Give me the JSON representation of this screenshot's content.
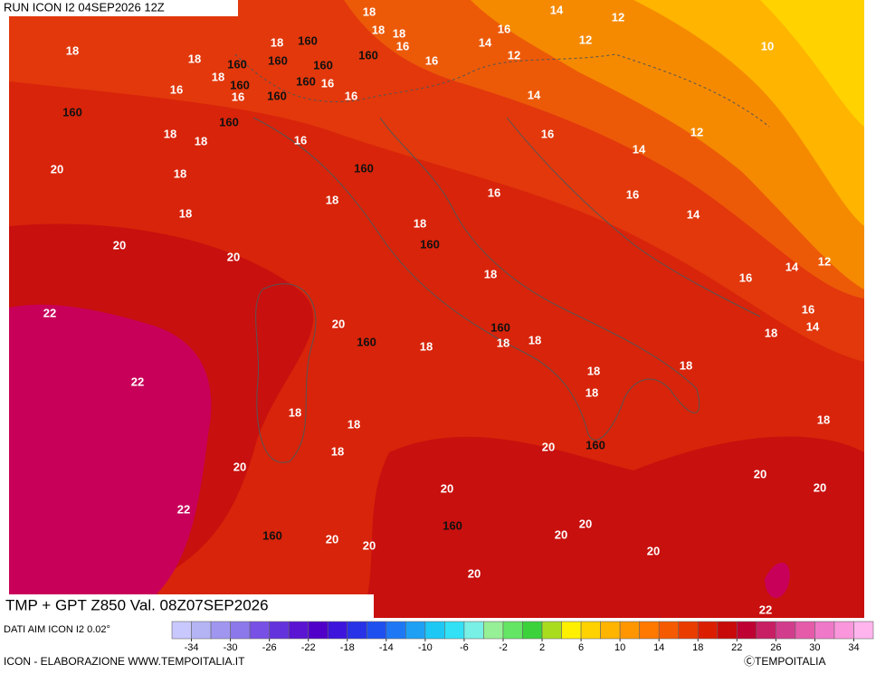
{
  "header": {
    "run": "RUN ICON I2 04SEP2026 12Z"
  },
  "map": {
    "title": "TMP + GPT Z850 Val. 08Z07SEP2026",
    "contour_labels": [
      "18",
      "14",
      "12",
      "16",
      "18",
      "18",
      "16",
      "160",
      "18",
      "14",
      "12",
      "10",
      "18",
      "18",
      "160",
      "160",
      "160",
      "160",
      "12",
      "16",
      "18",
      "160",
      "160",
      "16",
      "16",
      "16",
      "160",
      "16",
      "14",
      "160",
      "160",
      "12",
      "18",
      "18",
      "16",
      "16",
      "14",
      "20",
      "18",
      "160",
      "16",
      "16",
      "18",
      "18",
      "14",
      "18",
      "20",
      "160",
      "20",
      "14",
      "12",
      "18",
      "16",
      "22",
      "16",
      "20",
      "160",
      "18",
      "14",
      "160",
      "18",
      "18",
      "18",
      "18",
      "22",
      "18",
      "18",
      "18",
      "18",
      "18",
      "18",
      "20",
      "160",
      "20",
      "20",
      "20",
      "20",
      "22",
      "160",
      "20",
      "160",
      "20",
      "20",
      "20",
      "20",
      "20",
      "22"
    ]
  },
  "colorbar": {
    "source": "DATI AIM ICON I2 0.02°",
    "colors": [
      "#c8c8ff",
      "#b4b4f5",
      "#a096f0",
      "#8c78eb",
      "#7850e6",
      "#6432dc",
      "#5a14d2",
      "#5000c8",
      "#3c14dc",
      "#2832e6",
      "#1e50f0",
      "#1e78f5",
      "#1ea0f5",
      "#1ec8f5",
      "#32e1f5",
      "#78f0e6",
      "#96f096",
      "#64e664",
      "#3cd23c",
      "#aadc1e",
      "#fff000",
      "#ffd200",
      "#ffb400",
      "#ff9600",
      "#ff7800",
      "#f55a00",
      "#eb3c00",
      "#dc1e00",
      "#c80a0a",
      "#be0032",
      "#c81e64",
      "#d23c8c",
      "#e65aaa",
      "#f078c8",
      "#fa96dc",
      "#ffb4ee"
    ],
    "ticks": [
      -34,
      -30,
      -26,
      -22,
      -18,
      -14,
      -10,
      -6,
      -2,
      2,
      6,
      10,
      14,
      18,
      22,
      26,
      30,
      34
    ]
  },
  "footer": {
    "credit": "ICON - ELABORAZIONE WWW.TEMPOITALIA.IT",
    "logo": "ⒸTEMPOITALIA"
  }
}
